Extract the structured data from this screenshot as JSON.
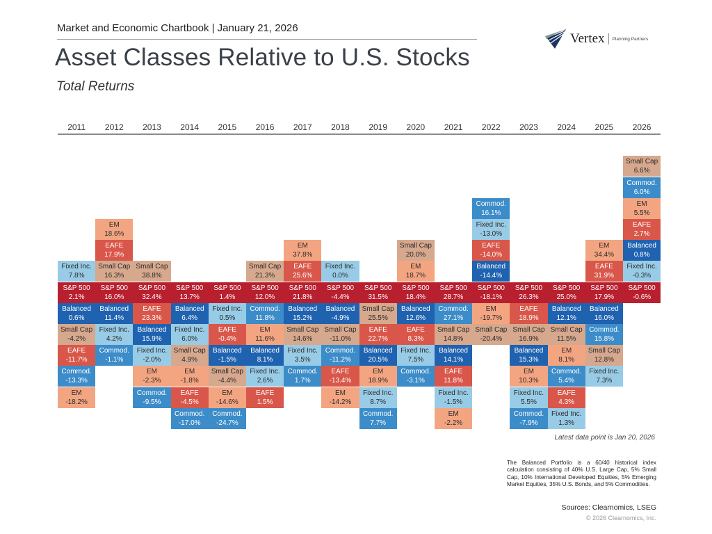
{
  "header": {
    "topline": "Market and Economic Chartbook | January 21, 2026",
    "title": "Asset Classes Relative to U.S. Stocks",
    "subtitle": "Total Returns"
  },
  "logo": {
    "name": "Vertex",
    "tagline": "Planning Partners",
    "icon": "vertex-logo-icon"
  },
  "colors": {
    "S&P 500": "#b8202f",
    "Balanced": "#1f62b0",
    "Fixed Inc.": "#98cbe6",
    "Commod.": "#3c8cc9",
    "EM": "#f3a582",
    "EAFE": "#d9574a",
    "Small Cap": "#d6a88d"
  },
  "text_colors": {
    "S&P 500": "#ffffff",
    "Balanced": "#ffffff",
    "Fixed Inc.": "#2b2b2b",
    "Commod.": "#ffffff",
    "EM": "#2b2b2b",
    "EAFE": "#ffffff",
    "Small Cap": "#2b2b2b"
  },
  "chart_data": {
    "type": "table",
    "title": "Asset Classes Relative to U.S. Stocks",
    "subtitle": "Total Returns",
    "description": "Per year, assets ranked by return; S&P 500 anchored on a center row, assets that outperformed stacked above (lowest closest to S&P), underperformers stacked below (descending).",
    "years": [
      "2011",
      "2012",
      "2013",
      "2014",
      "2015",
      "2016",
      "2017",
      "2018",
      "2019",
      "2020",
      "2021",
      "2022",
      "2023",
      "2024",
      "2025",
      "2026"
    ],
    "columns": [
      {
        "year": "2011",
        "above": [
          {
            "asset": "Fixed Inc.",
            "value": "7.8%"
          }
        ],
        "sp500": "2.1%",
        "below": [
          {
            "asset": "Balanced",
            "value": "0.6%"
          },
          {
            "asset": "Small Cap",
            "value": "-4.2%"
          },
          {
            "asset": "EAFE",
            "value": "-11.7%"
          },
          {
            "asset": "Commod.",
            "value": "-13.3%"
          },
          {
            "asset": "EM",
            "value": "-18.2%"
          }
        ]
      },
      {
        "year": "2012",
        "above": [
          {
            "asset": "EM",
            "value": "18.6%"
          },
          {
            "asset": "EAFE",
            "value": "17.9%"
          },
          {
            "asset": "Small Cap",
            "value": "16.3%"
          }
        ],
        "sp500": "16.0%",
        "below": [
          {
            "asset": "Balanced",
            "value": "11.4%"
          },
          {
            "asset": "Fixed Inc.",
            "value": "4.2%"
          },
          {
            "asset": "Commod.",
            "value": "-1.1%"
          }
        ]
      },
      {
        "year": "2013",
        "above": [
          {
            "asset": "Small Cap",
            "value": "38.8%"
          }
        ],
        "sp500": "32.4%",
        "below": [
          {
            "asset": "EAFE",
            "value": "23.3%"
          },
          {
            "asset": "Balanced",
            "value": "15.9%"
          },
          {
            "asset": "Fixed Inc.",
            "value": "-2.0%"
          },
          {
            "asset": "EM",
            "value": "-2.3%"
          },
          {
            "asset": "Commod.",
            "value": "-9.5%"
          }
        ]
      },
      {
        "year": "2014",
        "above": [],
        "sp500": "13.7%",
        "below": [
          {
            "asset": "Balanced",
            "value": "6.4%"
          },
          {
            "asset": "Fixed Inc.",
            "value": "6.0%"
          },
          {
            "asset": "Small Cap",
            "value": "4.9%"
          },
          {
            "asset": "EM",
            "value": "-1.8%"
          },
          {
            "asset": "EAFE",
            "value": "-4.5%"
          },
          {
            "asset": "Commod.",
            "value": "-17.0%"
          }
        ]
      },
      {
        "year": "2015",
        "above": [],
        "sp500": "1.4%",
        "below": [
          {
            "asset": "Fixed Inc.",
            "value": "0.5%"
          },
          {
            "asset": "EAFE",
            "value": "-0.4%"
          },
          {
            "asset": "Balanced",
            "value": "-1.5%"
          },
          {
            "asset": "Small Cap",
            "value": "-4.4%"
          },
          {
            "asset": "EM",
            "value": "-14.6%"
          },
          {
            "asset": "Commod.",
            "value": "-24.7%"
          }
        ]
      },
      {
        "year": "2016",
        "above": [
          {
            "asset": "Small Cap",
            "value": "21.3%"
          }
        ],
        "sp500": "12.0%",
        "below": [
          {
            "asset": "Commod.",
            "value": "11.8%"
          },
          {
            "asset": "EM",
            "value": "11.6%"
          },
          {
            "asset": "Balanced",
            "value": "8.1%"
          },
          {
            "asset": "Fixed Inc.",
            "value": "2.6%"
          },
          {
            "asset": "EAFE",
            "value": "1.5%"
          }
        ]
      },
      {
        "year": "2017",
        "above": [
          {
            "asset": "EM",
            "value": "37.8%"
          },
          {
            "asset": "EAFE",
            "value": "25.6%"
          }
        ],
        "sp500": "21.8%",
        "below": [
          {
            "asset": "Balanced",
            "value": "15.2%"
          },
          {
            "asset": "Small Cap",
            "value": "14.6%"
          },
          {
            "asset": "Fixed Inc.",
            "value": "3.5%"
          },
          {
            "asset": "Commod.",
            "value": "1.7%"
          }
        ]
      },
      {
        "year": "2018",
        "above": [
          {
            "asset": "Fixed Inc.",
            "value": "0.0%"
          }
        ],
        "sp500": "-4.4%",
        "below": [
          {
            "asset": "Balanced",
            "value": "-4.9%"
          },
          {
            "asset": "Small Cap",
            "value": "-11.0%"
          },
          {
            "asset": "Commod.",
            "value": "-11.2%"
          },
          {
            "asset": "EAFE",
            "value": "-13.4%"
          },
          {
            "asset": "EM",
            "value": "-14.2%"
          }
        ]
      },
      {
        "year": "2019",
        "above": [],
        "sp500": "31.5%",
        "below": [
          {
            "asset": "Small Cap",
            "value": "25.5%"
          },
          {
            "asset": "EAFE",
            "value": "22.7%"
          },
          {
            "asset": "Balanced",
            "value": "20.5%"
          },
          {
            "asset": "EM",
            "value": "18.9%"
          },
          {
            "asset": "Fixed Inc.",
            "value": "8.7%"
          },
          {
            "asset": "Commod.",
            "value": "7.7%"
          }
        ]
      },
      {
        "year": "2020",
        "above": [
          {
            "asset": "Small Cap",
            "value": "20.0%"
          },
          {
            "asset": "EM",
            "value": "18.7%"
          }
        ],
        "sp500": "18.4%",
        "below": [
          {
            "asset": "Balanced",
            "value": "12.6%"
          },
          {
            "asset": "EAFE",
            "value": "8.3%"
          },
          {
            "asset": "Fixed Inc.",
            "value": "7.5%"
          },
          {
            "asset": "Commod.",
            "value": "-3.1%"
          }
        ]
      },
      {
        "year": "2021",
        "above": [],
        "sp500": "28.7%",
        "below": [
          {
            "asset": "Commod.",
            "value": "27.1%"
          },
          {
            "asset": "Small Cap",
            "value": "14.8%"
          },
          {
            "asset": "Balanced",
            "value": "14.1%"
          },
          {
            "asset": "EAFE",
            "value": "11.8%"
          },
          {
            "asset": "Fixed Inc.",
            "value": "-1.5%"
          },
          {
            "asset": "EM",
            "value": "-2.2%"
          }
        ]
      },
      {
        "year": "2022",
        "above": [
          {
            "asset": "Commod.",
            "value": "16.1%"
          },
          {
            "asset": "Fixed Inc.",
            "value": "-13.0%"
          },
          {
            "asset": "EAFE",
            "value": "-14.0%"
          },
          {
            "asset": "Balanced",
            "value": "-14.4%"
          }
        ],
        "sp500": "-18.1%",
        "below": [
          {
            "asset": "EM",
            "value": "-19.7%"
          },
          {
            "asset": "Small Cap",
            "value": "-20.4%"
          }
        ]
      },
      {
        "year": "2023",
        "above": [],
        "sp500": "26.3%",
        "below": [
          {
            "asset": "EAFE",
            "value": "18.9%"
          },
          {
            "asset": "Small Cap",
            "value": "16.9%"
          },
          {
            "asset": "Balanced",
            "value": "15.3%"
          },
          {
            "asset": "EM",
            "value": "10.3%"
          },
          {
            "asset": "Fixed Inc.",
            "value": "5.5%"
          },
          {
            "asset": "Commod.",
            "value": "-7.9%"
          }
        ]
      },
      {
        "year": "2024",
        "above": [],
        "sp500": "25.0%",
        "below": [
          {
            "asset": "Balanced",
            "value": "12.1%"
          },
          {
            "asset": "Small Cap",
            "value": "11.5%"
          },
          {
            "asset": "EM",
            "value": "8.1%"
          },
          {
            "asset": "Commod.",
            "value": "5.4%"
          },
          {
            "asset": "EAFE",
            "value": "4.3%"
          },
          {
            "asset": "Fixed Inc.",
            "value": "1.3%"
          }
        ]
      },
      {
        "year": "2025",
        "above": [
          {
            "asset": "EM",
            "value": "34.4%"
          },
          {
            "asset": "EAFE",
            "value": "31.9%"
          }
        ],
        "sp500": "17.9%",
        "below": [
          {
            "asset": "Balanced",
            "value": "16.0%"
          },
          {
            "asset": "Commod.",
            "value": "15.8%"
          },
          {
            "asset": "Small Cap",
            "value": "12.8%"
          },
          {
            "asset": "Fixed Inc.",
            "value": "7.3%"
          }
        ]
      },
      {
        "year": "2026",
        "above": [
          {
            "asset": "Small Cap",
            "value": "6.6%"
          },
          {
            "asset": "Commod.",
            "value": "6.0%"
          },
          {
            "asset": "EM",
            "value": "5.5%"
          },
          {
            "asset": "EAFE",
            "value": "2.7%"
          },
          {
            "asset": "Balanced",
            "value": "0.8%"
          },
          {
            "asset": "Fixed Inc.",
            "value": "-0.3%"
          }
        ],
        "sp500": "-0.6%",
        "below": []
      }
    ]
  },
  "footer": {
    "latest": "Latest data point is Jan 20, 2026",
    "note": "The Balanced Portfolio is a 60/40 historical index calculation consisting of 40% U.S. Large Cap, 5% Small Cap, 10% International Developed Equities, 5% Emerging Market Equities, 35% U.S. Bonds, and 5% Commodities.",
    "sources": "Sources: Clearnomics, LSEG",
    "copyright": "© 2026 Clearnomics, Inc."
  }
}
